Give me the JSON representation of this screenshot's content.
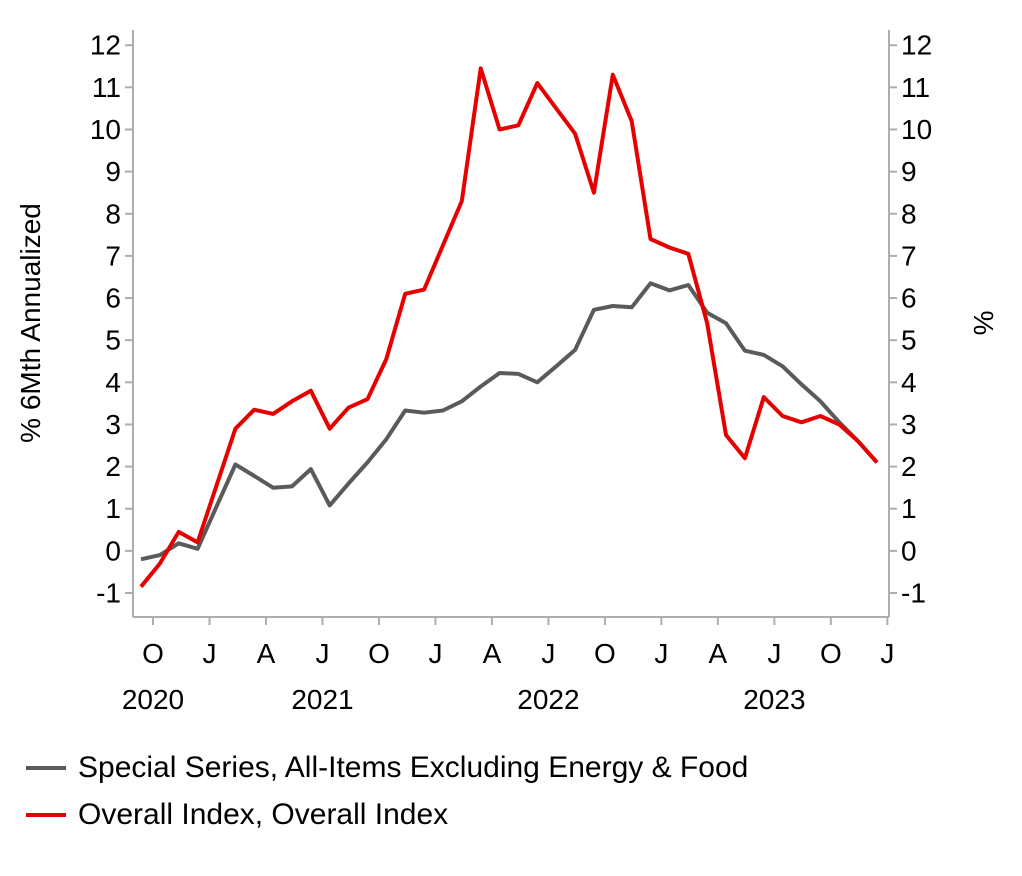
{
  "chart_data": {
    "type": "line",
    "title": "",
    "xlabel": "",
    "ylabel_left": "% 6Mth Annualized",
    "ylabel_right": "%",
    "ylim": [
      -1,
      12
    ],
    "y_ticks": [
      -1,
      0,
      1,
      2,
      3,
      4,
      5,
      6,
      7,
      8,
      9,
      10,
      11,
      12
    ],
    "grid": false,
    "legend_position": "bottom-left",
    "x": [
      "2020-10",
      "2020-11",
      "2020-12",
      "2021-01",
      "2021-02",
      "2021-03",
      "2021-04",
      "2021-05",
      "2021-06",
      "2021-07",
      "2021-08",
      "2021-09",
      "2021-10",
      "2021-11",
      "2021-12",
      "2022-01",
      "2022-02",
      "2022-03",
      "2022-04",
      "2022-05",
      "2022-06",
      "2022-07",
      "2022-08",
      "2022-09",
      "2022-10",
      "2022-11",
      "2022-12",
      "2023-01",
      "2023-02",
      "2023-03",
      "2023-04",
      "2023-05",
      "2023-06",
      "2023-07",
      "2023-08",
      "2023-09",
      "2023-10",
      "2023-11",
      "2023-12",
      "2024-01"
    ],
    "x_tick_labels": [
      "O",
      "J",
      "A",
      "J",
      "O",
      "J",
      "A",
      "J",
      "O",
      "J",
      "A",
      "J",
      "O",
      "J"
    ],
    "x_tick_month_indices": [
      0,
      3,
      6,
      9,
      12,
      15,
      18,
      21,
      24,
      27,
      30,
      33,
      36,
      39
    ],
    "year_labels": [
      {
        "text": "2020",
        "month_index": 0
      },
      {
        "text": "2021",
        "month_index": 9
      },
      {
        "text": "2022",
        "month_index": 21
      },
      {
        "text": "2023",
        "month_index": 33
      }
    ],
    "series": [
      {
        "name": "Special Series, All-Items Excluding Energy & Food",
        "color": "#5A5A5A",
        "values": [
          -0.2,
          -0.1,
          0.18,
          0.05,
          1.05,
          2.05,
          1.78,
          1.5,
          1.53,
          1.94,
          1.08,
          1.6,
          2.1,
          2.65,
          3.33,
          3.28,
          3.33,
          3.55,
          3.9,
          4.22,
          4.2,
          4.0,
          4.38,
          4.77,
          5.72,
          5.81,
          5.78,
          6.35,
          6.18,
          6.31,
          5.65,
          5.4,
          4.75,
          4.65,
          4.38,
          3.95,
          3.55,
          3.05,
          2.6,
          2.1
        ]
      },
      {
        "name": "Overall Index, Overall Index",
        "color": "#E60000",
        "values": [
          -0.85,
          -0.3,
          0.45,
          0.2,
          1.55,
          2.9,
          3.35,
          3.25,
          3.55,
          3.8,
          2.9,
          3.4,
          3.6,
          4.55,
          6.1,
          6.2,
          7.25,
          8.3,
          11.45,
          10.0,
          10.1,
          11.1,
          10.5,
          9.9,
          8.5,
          11.3,
          10.2,
          7.4,
          7.2,
          7.05,
          5.4,
          2.75,
          2.2,
          3.65,
          3.2,
          3.05,
          3.2,
          3.0,
          2.6,
          2.1
        ]
      }
    ]
  },
  "colors": {
    "axis": "#ADADAD",
    "text": "#000000",
    "background": "#FFFFFF"
  }
}
